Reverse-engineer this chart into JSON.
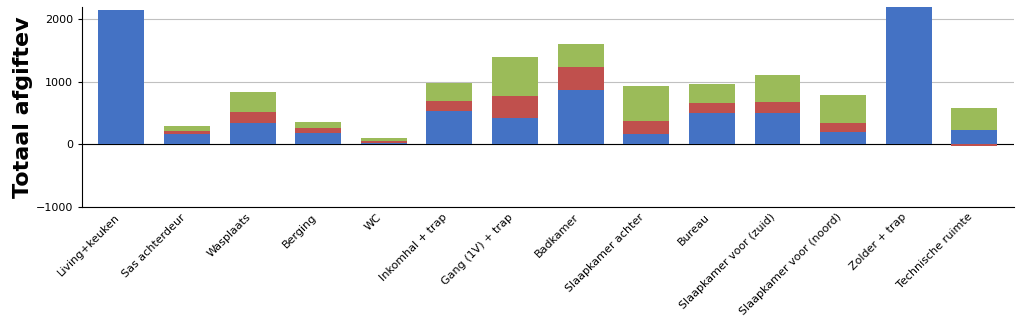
{
  "categories": [
    "Living+keuken",
    "Sas achterdeur",
    "Wasplaats",
    "Berging",
    "WC",
    "Inkomhal + trap",
    "Gang (1V) + trap",
    "Badkamer",
    "Slaapkamer achter",
    "Bureau",
    "Slaapkamer voor (zuid)",
    "Slaapkamer voor (noord)",
    "Zolder + trap",
    "Technische ruimte"
  ],
  "series_blue": [
    2150,
    170,
    350,
    185,
    30,
    530,
    430,
    870,
    170,
    500,
    510,
    200,
    2200,
    230
  ],
  "series_red": [
    0,
    40,
    170,
    70,
    20,
    160,
    340,
    360,
    210,
    160,
    170,
    140,
    0,
    -30
  ],
  "series_green": [
    0,
    80,
    310,
    110,
    50,
    290,
    630,
    370,
    560,
    310,
    430,
    450,
    0,
    360
  ],
  "color_blue": "#4472C4",
  "color_red": "#C0504D",
  "color_green": "#9BBB59",
  "ylabel": "Totaal afgiftev",
  "ylim_min": -1000,
  "ylim_max": 2200,
  "yticks": [
    -1000,
    0,
    1000,
    2000
  ],
  "bg_color": "#FFFFFF",
  "grid_color": "#C0C0C0",
  "bar_width": 0.7,
  "ylabel_fontsize": 16,
  "tick_fontsize": 8,
  "figsize": [
    10.24,
    3.34
  ],
  "dpi": 100
}
